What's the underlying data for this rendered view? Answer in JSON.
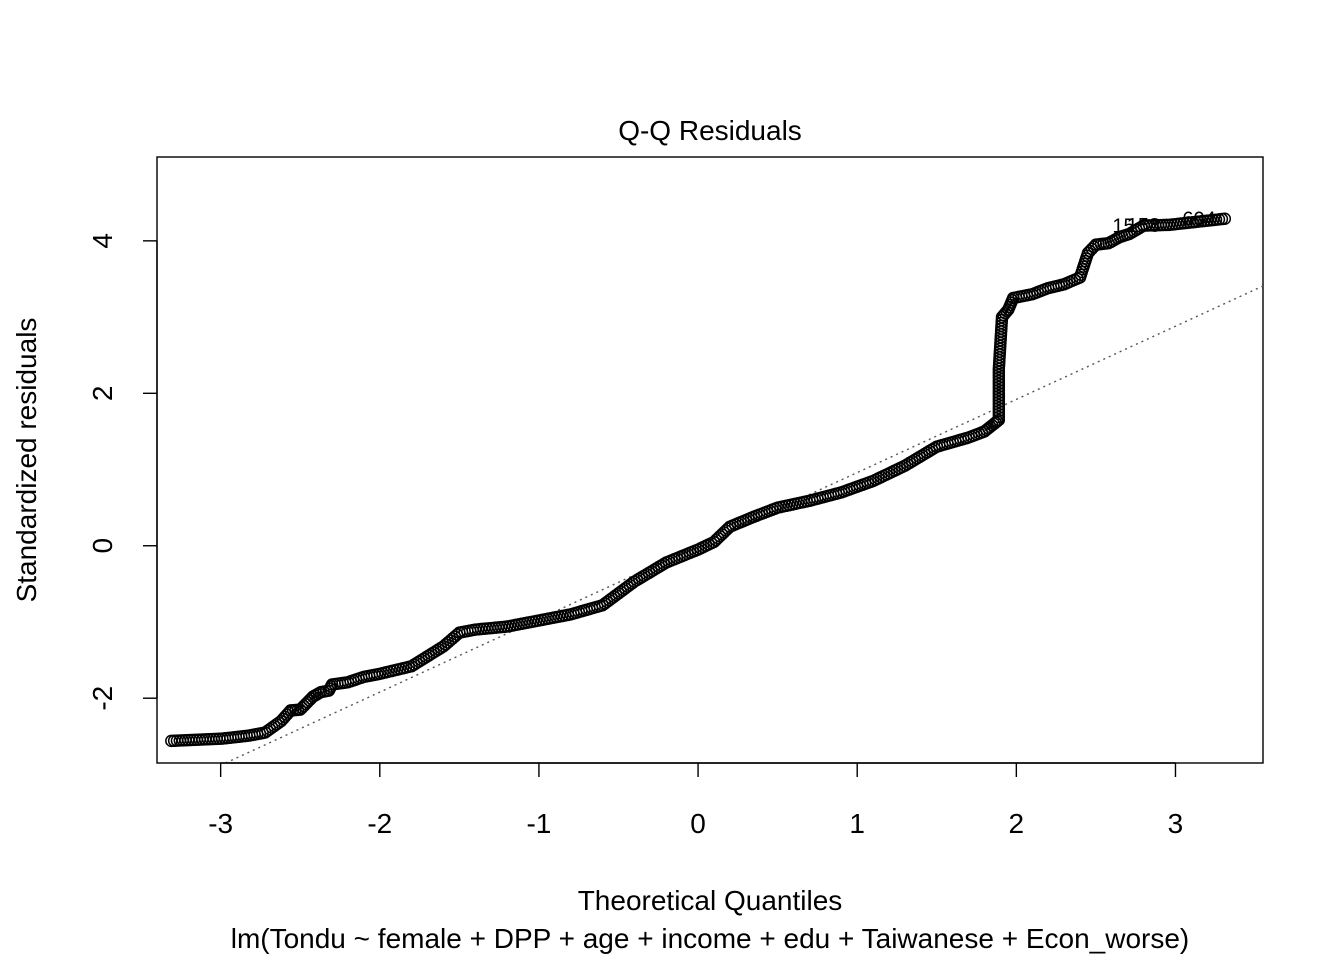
{
  "chart_data": {
    "type": "scatter",
    "title": "Q-Q Residuals",
    "xlabel": "Theoretical Quantiles",
    "sublabel": "lm(Tondu ~ female + DPP + age + income + edu + Taiwanese + Econ_worse)",
    "ylabel": "Standardized residuals",
    "xlim": [
      -3.4,
      3.55
    ],
    "ylim": [
      -2.85,
      5.1
    ],
    "xticks": [
      -3,
      -2,
      -1,
      0,
      1,
      2,
      3
    ],
    "yticks": [
      -2,
      0,
      2,
      4
    ],
    "grid": false,
    "reference_line": {
      "intercept": 0.0,
      "slope": 0.96,
      "style": "dotted"
    },
    "point_labels": [
      {
        "text": "604",
        "x": 3.31,
        "y": 4.29
      },
      {
        "text": "158",
        "x": 2.96,
        "y": 4.21
      },
      {
        "text": "15",
        "x": 2.8,
        "y": 4.2
      }
    ],
    "knots": [
      [
        -3.31,
        -2.56
      ],
      [
        -2.99,
        -2.53
      ],
      [
        -2.82,
        -2.49
      ],
      [
        -2.72,
        -2.45
      ],
      [
        -2.62,
        -2.3
      ],
      [
        -2.56,
        -2.16
      ],
      [
        -2.5,
        -2.15
      ],
      [
        -2.42,
        -1.98
      ],
      [
        -2.37,
        -1.92
      ],
      [
        -2.32,
        -1.9
      ],
      [
        -2.3,
        -1.82
      ],
      [
        -2.2,
        -1.79
      ],
      [
        -2.1,
        -1.72
      ],
      [
        -2.0,
        -1.68
      ],
      [
        -1.8,
        -1.58
      ],
      [
        -1.6,
        -1.32
      ],
      [
        -1.5,
        -1.14
      ],
      [
        -1.4,
        -1.1
      ],
      [
        -1.2,
        -1.06
      ],
      [
        -1.0,
        -0.98
      ],
      [
        -0.8,
        -0.9
      ],
      [
        -0.6,
        -0.78
      ],
      [
        -0.4,
        -0.47
      ],
      [
        -0.2,
        -0.22
      ],
      [
        0.0,
        -0.05
      ],
      [
        0.1,
        0.05
      ],
      [
        0.2,
        0.25
      ],
      [
        0.35,
        0.38
      ],
      [
        0.5,
        0.5
      ],
      [
        0.7,
        0.59
      ],
      [
        0.9,
        0.7
      ],
      [
        1.1,
        0.85
      ],
      [
        1.3,
        1.05
      ],
      [
        1.5,
        1.3
      ],
      [
        1.7,
        1.42
      ],
      [
        1.8,
        1.5
      ],
      [
        1.86,
        1.6
      ],
      [
        1.89,
        1.65
      ],
      [
        1.89,
        2.32
      ],
      [
        1.91,
        3.0
      ],
      [
        1.95,
        3.1
      ],
      [
        1.98,
        3.25
      ],
      [
        2.1,
        3.3
      ],
      [
        2.2,
        3.38
      ],
      [
        2.3,
        3.43
      ],
      [
        2.4,
        3.52
      ],
      [
        2.45,
        3.84
      ],
      [
        2.5,
        3.95
      ],
      [
        2.58,
        3.97
      ],
      [
        2.65,
        4.05
      ],
      [
        2.71,
        4.09
      ],
      [
        2.8,
        4.2
      ],
      [
        2.96,
        4.21
      ],
      [
        3.31,
        4.29
      ]
    ]
  }
}
